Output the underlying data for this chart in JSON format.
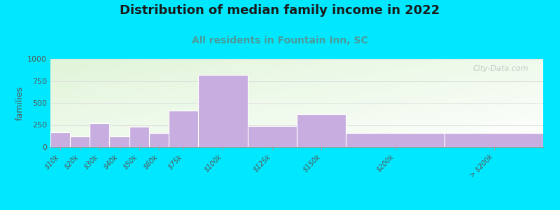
{
  "title": "Distribution of median family income in 2022",
  "subtitle": "All residents in Fountain Inn, SC",
  "ylabel": "families",
  "categories": [
    "$10k",
    "$20k",
    "$30k",
    "$40k",
    "$50k",
    "$60k",
    "$75k",
    "$100k",
    "$125k",
    "$150k",
    "$200k",
    "> $200k"
  ],
  "values": [
    165,
    120,
    270,
    120,
    230,
    155,
    410,
    820,
    240,
    370,
    155,
    155
  ],
  "edges": [
    0,
    10,
    20,
    30,
    40,
    50,
    60,
    75,
    100,
    125,
    150,
    200,
    250
  ],
  "bar_color": "#c8aee0",
  "ylim": [
    0,
    1000
  ],
  "yticks": [
    0,
    250,
    500,
    750,
    1000
  ],
  "background_outer": "#00e8ff",
  "title_fontsize": 13,
  "subtitle_fontsize": 10,
  "subtitle_color": "#4d9999",
  "watermark": "City-Data.com",
  "grid_color": "#dddddd"
}
